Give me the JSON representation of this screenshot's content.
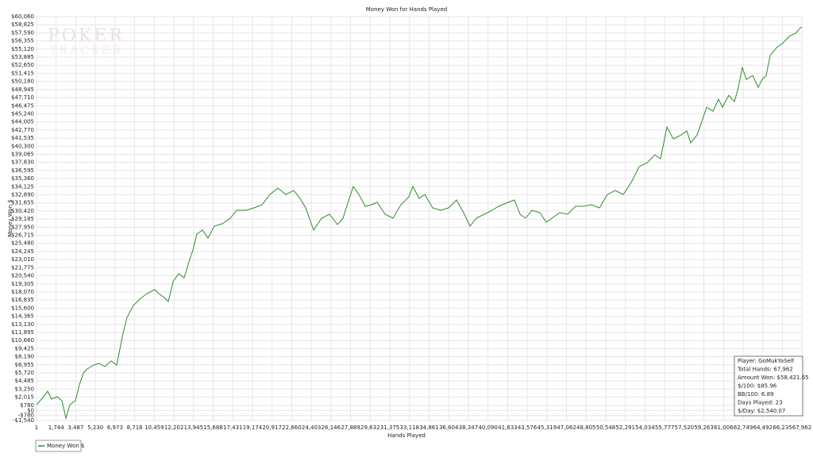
{
  "chart_data": {
    "type": "line",
    "title": "Money Won for Hands Played",
    "xlabel": "Hands Played",
    "ylabel": "Money Won $",
    "watermark": [
      "POKER",
      "TRACKER"
    ],
    "grid": true,
    "legend": "bottom-left",
    "xlim": [
      1,
      67962
    ],
    "ylim": [
      -1540,
      60060
    ],
    "xticks": [
      1,
      {
        "value": 1744,
        "label": "1,744"
      },
      {
        "value": 3487,
        "label": "3,487"
      },
      {
        "value": 5230,
        "label": "5,230"
      },
      {
        "value": 6973,
        "label": "6,973"
      },
      {
        "value": 8716,
        "label": "8,716"
      },
      {
        "value": 10459,
        "label": "10,459"
      },
      {
        "value": 12202,
        "label": "12,202"
      },
      {
        "value": 13945,
        "label": "13,945"
      },
      {
        "value": 15688,
        "label": "15,688"
      },
      {
        "value": 17431,
        "label": "17,431"
      },
      {
        "value": 19174,
        "label": "19,174"
      },
      {
        "value": 20917,
        "label": "20,917"
      },
      {
        "value": 22660,
        "label": "22,660"
      },
      {
        "value": 24403,
        "label": "24,403"
      },
      {
        "value": 26146,
        "label": "26,146"
      },
      {
        "value": 27889,
        "label": "27,889"
      },
      {
        "value": 29632,
        "label": "29,632"
      },
      {
        "value": 31375,
        "label": "31,375"
      },
      {
        "value": 33118,
        "label": "33,118"
      },
      {
        "value": 34861,
        "label": "34,861"
      },
      {
        "value": 36604,
        "label": "36,604"
      },
      {
        "value": 38347,
        "label": "38,347"
      },
      {
        "value": 40090,
        "label": "40,090"
      },
      {
        "value": 41833,
        "label": "41,833"
      },
      {
        "value": 43576,
        "label": "43,576"
      },
      {
        "value": 45319,
        "label": "45,319"
      },
      {
        "value": 47062,
        "label": "47,062"
      },
      {
        "value": 48805,
        "label": "48,805"
      },
      {
        "value": 50548,
        "label": "50,548"
      },
      {
        "value": 52291,
        "label": "52,291"
      },
      {
        "value": 54034,
        "label": "54,034"
      },
      {
        "value": 55777,
        "label": "55,777"
      },
      {
        "value": 57520,
        "label": "57,520"
      },
      {
        "value": 59263,
        "label": "59,263"
      },
      {
        "value": 61006,
        "label": "61,006"
      },
      {
        "value": 62749,
        "label": "62,749"
      },
      {
        "value": 64492,
        "label": "64,492"
      },
      {
        "value": 66235,
        "label": "66,235"
      },
      {
        "value": 67962,
        "label": "67,962"
      }
    ],
    "yticks": [
      {
        "value": -1540,
        "label": "-$1,540"
      },
      {
        "value": -780,
        "label": "-$780"
      },
      {
        "value": 0,
        "label": "$0"
      },
      {
        "value": 780,
        "label": "$780"
      },
      {
        "value": 2015,
        "label": "$2,015"
      },
      {
        "value": 3250,
        "label": "$3,250"
      },
      {
        "value": 4485,
        "label": "$4,485"
      },
      {
        "value": 5720,
        "label": "$5,720"
      },
      {
        "value": 6955,
        "label": "$6,955"
      },
      {
        "value": 8190,
        "label": "$8,190"
      },
      {
        "value": 9425,
        "label": "$9,425"
      },
      {
        "value": 10660,
        "label": "$10,660"
      },
      {
        "value": 11895,
        "label": "$11,895"
      },
      {
        "value": 13130,
        "label": "$13,130"
      },
      {
        "value": 14365,
        "label": "$14,365"
      },
      {
        "value": 15600,
        "label": "$15,600"
      },
      {
        "value": 16835,
        "label": "$16,835"
      },
      {
        "value": 18070,
        "label": "$18,070"
      },
      {
        "value": 19305,
        "label": "$19,305"
      },
      {
        "value": 20540,
        "label": "$20,540"
      },
      {
        "value": 21775,
        "label": "$21,775"
      },
      {
        "value": 23010,
        "label": "$23,010"
      },
      {
        "value": 24245,
        "label": "$24,245"
      },
      {
        "value": 25480,
        "label": "$25,480"
      },
      {
        "value": 26715,
        "label": "$26,715"
      },
      {
        "value": 27950,
        "label": "$27,950"
      },
      {
        "value": 29185,
        "label": "$29,185"
      },
      {
        "value": 30420,
        "label": "$30,420"
      },
      {
        "value": 31655,
        "label": "$31,655"
      },
      {
        "value": 32890,
        "label": "$32,890"
      },
      {
        "value": 34125,
        "label": "$34,125"
      },
      {
        "value": 35360,
        "label": "$35,360"
      },
      {
        "value": 36595,
        "label": "$36,595"
      },
      {
        "value": 37830,
        "label": "$37,830"
      },
      {
        "value": 39065,
        "label": "$39,065"
      },
      {
        "value": 40300,
        "label": "$40,300"
      },
      {
        "value": 41535,
        "label": "$41,535"
      },
      {
        "value": 42770,
        "label": "$42,770"
      },
      {
        "value": 44005,
        "label": "$44,005"
      },
      {
        "value": 45240,
        "label": "$45,240"
      },
      {
        "value": 46475,
        "label": "$46,475"
      },
      {
        "value": 47710,
        "label": "$47,710"
      },
      {
        "value": 48945,
        "label": "$48,945"
      },
      {
        "value": 50180,
        "label": "$50,180"
      },
      {
        "value": 51415,
        "label": "$51,415"
      },
      {
        "value": 52650,
        "label": "$52,650"
      },
      {
        "value": 53885,
        "label": "$53,885"
      },
      {
        "value": 55120,
        "label": "$55,120"
      },
      {
        "value": 56355,
        "label": "$56,355"
      },
      {
        "value": 57590,
        "label": "$57,590"
      },
      {
        "value": 58825,
        "label": "$58,825"
      },
      {
        "value": 60060,
        "label": "$60,060"
      }
    ],
    "x": [
      1,
      635,
      987,
      1340,
      1833,
      2256,
      2609,
      2961,
      3455,
      3807,
      4160,
      4512,
      5076,
      5570,
      6063,
      6627,
      7121,
      7685,
      8037,
      8601,
      9095,
      9800,
      10505,
      10857,
      11351,
      11703,
      12126,
      12620,
      13113,
      13536,
      13889,
      14241,
      14735,
      15228,
      15792,
      16497,
      17202,
      17766,
      18612,
      19317,
      20022,
      20727,
      21432,
      22137,
      22842,
      23406,
      23900,
      24605,
      25310,
      26015,
      26720,
      27213,
      27777,
      28130,
      28623,
      29187,
      29751,
      30245,
      30950,
      31655,
      32360,
      33065,
      33417,
      33981,
      34475,
      35180,
      35885,
      36590,
      37295,
      38000,
      38493,
      39057,
      39762,
      40467,
      41031,
      41877,
      42441,
      42935,
      43428,
      43992,
      44697,
      45261,
      45755,
      46460,
      47165,
      47870,
      48575,
      49280,
      49985,
      50690,
      51395,
      52100,
      52805,
      53510,
      54215,
      54920,
      55413,
      55977,
      56541,
      57246,
      57740,
      58092,
      58656,
      59150,
      59502,
      60066,
      60560,
      60912,
      61476,
      61970,
      62322,
      62675,
      63027,
      63591,
      64085,
      64437,
      64790,
      65142,
      65706,
      66200,
      66905,
      67398,
      67821,
      67962
    ],
    "series": [
      {
        "name": "Money Won $",
        "color": "#2e8b2e",
        "values": [
          880,
          2090,
          2937,
          1727,
          2090,
          1485,
          -1177,
          880,
          1485,
          3905,
          5720,
          6325,
          6930,
          7172,
          6688,
          7535,
          6930,
          11770,
          14190,
          16005,
          16852,
          17820,
          18425,
          17820,
          17215,
          16610,
          19635,
          20845,
          20240,
          22660,
          24475,
          26895,
          27500,
          26290,
          28105,
          28468,
          29315,
          30525,
          30525,
          30888,
          31372,
          32945,
          33913,
          32945,
          33550,
          32340,
          30888,
          27500,
          29315,
          29920,
          28347,
          29315,
          32340,
          34155,
          32945,
          31130,
          31372,
          31735,
          29920,
          29315,
          31372,
          32582,
          34155,
          32340,
          32945,
          30888,
          30525,
          30888,
          32098,
          29920,
          28105,
          29315,
          29920,
          30525,
          31130,
          31735,
          32098,
          29920,
          29315,
          30525,
          30162,
          28710,
          29315,
          30162,
          29920,
          31130,
          31130,
          31372,
          30888,
          32945,
          33550,
          32945,
          34760,
          37180,
          37785,
          38995,
          38390,
          43230,
          41415,
          42020,
          42625,
          40810,
          42020,
          44440,
          46255,
          45650,
          47465,
          46255,
          48070,
          47102,
          49280,
          52305,
          50490,
          51095,
          49280,
          50490,
          51095,
          54120,
          55330,
          55935,
          57145,
          57508,
          58355,
          58422
        ]
      }
    ],
    "annotations": [
      "Player: GoMukYaSelf",
      "Total Hands: 67,962",
      "Amount Won: $58,421.65",
      "$/100: $85.96",
      "BB/100: 6.89",
      "Days Played: 23",
      "$/Day: $2,540.07"
    ]
  }
}
